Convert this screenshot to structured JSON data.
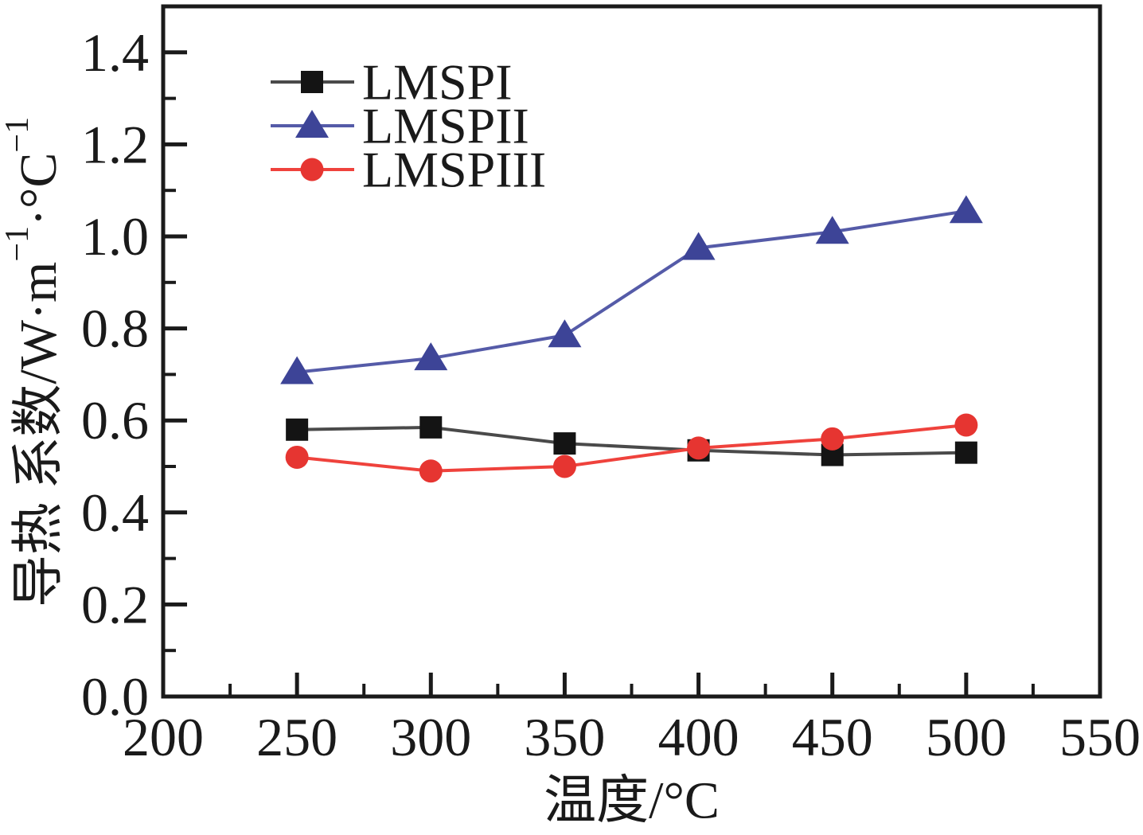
{
  "figure": {
    "background": "#ffffff",
    "axis_color": "#1a1a1a"
  },
  "chart_data": {
    "type": "line",
    "title": "",
    "xlabel": "温度/°C",
    "ylabel": "导热 系数/W·m⁻¹·°C⁻¹",
    "ylabel_parts": [
      {
        "text": "导热 系数/W·m"
      },
      {
        "text": "−1",
        "sup": true
      },
      {
        "text": "·°C"
      },
      {
        "text": "−1",
        "sup": true
      }
    ],
    "xlim": [
      200,
      550
    ],
    "ylim": [
      0,
      1.5
    ],
    "grid": false,
    "legend_position": "upper-left-inside",
    "xticks": [
      200,
      250,
      300,
      350,
      400,
      450,
      500,
      550
    ],
    "xtick_labels": [
      "200",
      "250",
      "300",
      "350",
      "400",
      "450",
      "500",
      "550"
    ],
    "xminor": [
      225,
      275,
      325,
      375,
      425,
      475,
      525
    ],
    "yticks": [
      0.0,
      0.2,
      0.4,
      0.6,
      0.8,
      1.0,
      1.2,
      1.4
    ],
    "ytick_labels": [
      "0.0",
      "0.2",
      "0.4",
      "0.6",
      "0.8",
      "1.0",
      "1.2",
      "1.4"
    ],
    "yminor": [
      0.1,
      0.3,
      0.5,
      0.7,
      0.9,
      1.1,
      1.3
    ],
    "x": [
      250,
      300,
      350,
      400,
      450,
      500
    ],
    "series": [
      {
        "name": "LMSPI",
        "marker": "square",
        "marker_color": "#141414",
        "line_color": "#4a4a4a",
        "values": [
          0.58,
          0.585,
          0.55,
          0.535,
          0.525,
          0.53
        ]
      },
      {
        "name": "LMSPII",
        "marker": "triangle",
        "marker_color": "#3d4497",
        "line_color": "#555ba8",
        "values": [
          0.705,
          0.735,
          0.785,
          0.975,
          1.01,
          1.055
        ]
      },
      {
        "name": "LMSPIII",
        "marker": "circle",
        "marker_color": "#e63531",
        "line_color": "#ef423c",
        "values": [
          0.52,
          0.49,
          0.5,
          0.54,
          0.56,
          0.59
        ]
      }
    ]
  }
}
